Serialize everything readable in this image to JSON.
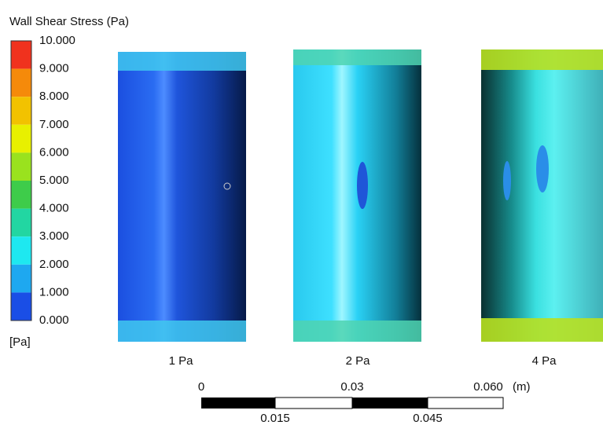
{
  "legend": {
    "title": "Wall Shear Stress (Pa)",
    "labels": [
      "10.000",
      "9.000",
      "8.000",
      "7.000",
      "6.000",
      "5.000",
      "4.000",
      "3.000",
      "2.000",
      "1.000",
      "0.000"
    ],
    "unit": "[Pa]"
  },
  "panels": [
    {
      "label": "1 Pa"
    },
    {
      "label": "2 Pa"
    },
    {
      "label": "4 Pa"
    }
  ],
  "scale_bar": {
    "top_labels": [
      "0",
      "0.03",
      "0.060"
    ],
    "unit": "(m)",
    "bottom_labels": [
      "0.015",
      "0.045"
    ]
  }
}
